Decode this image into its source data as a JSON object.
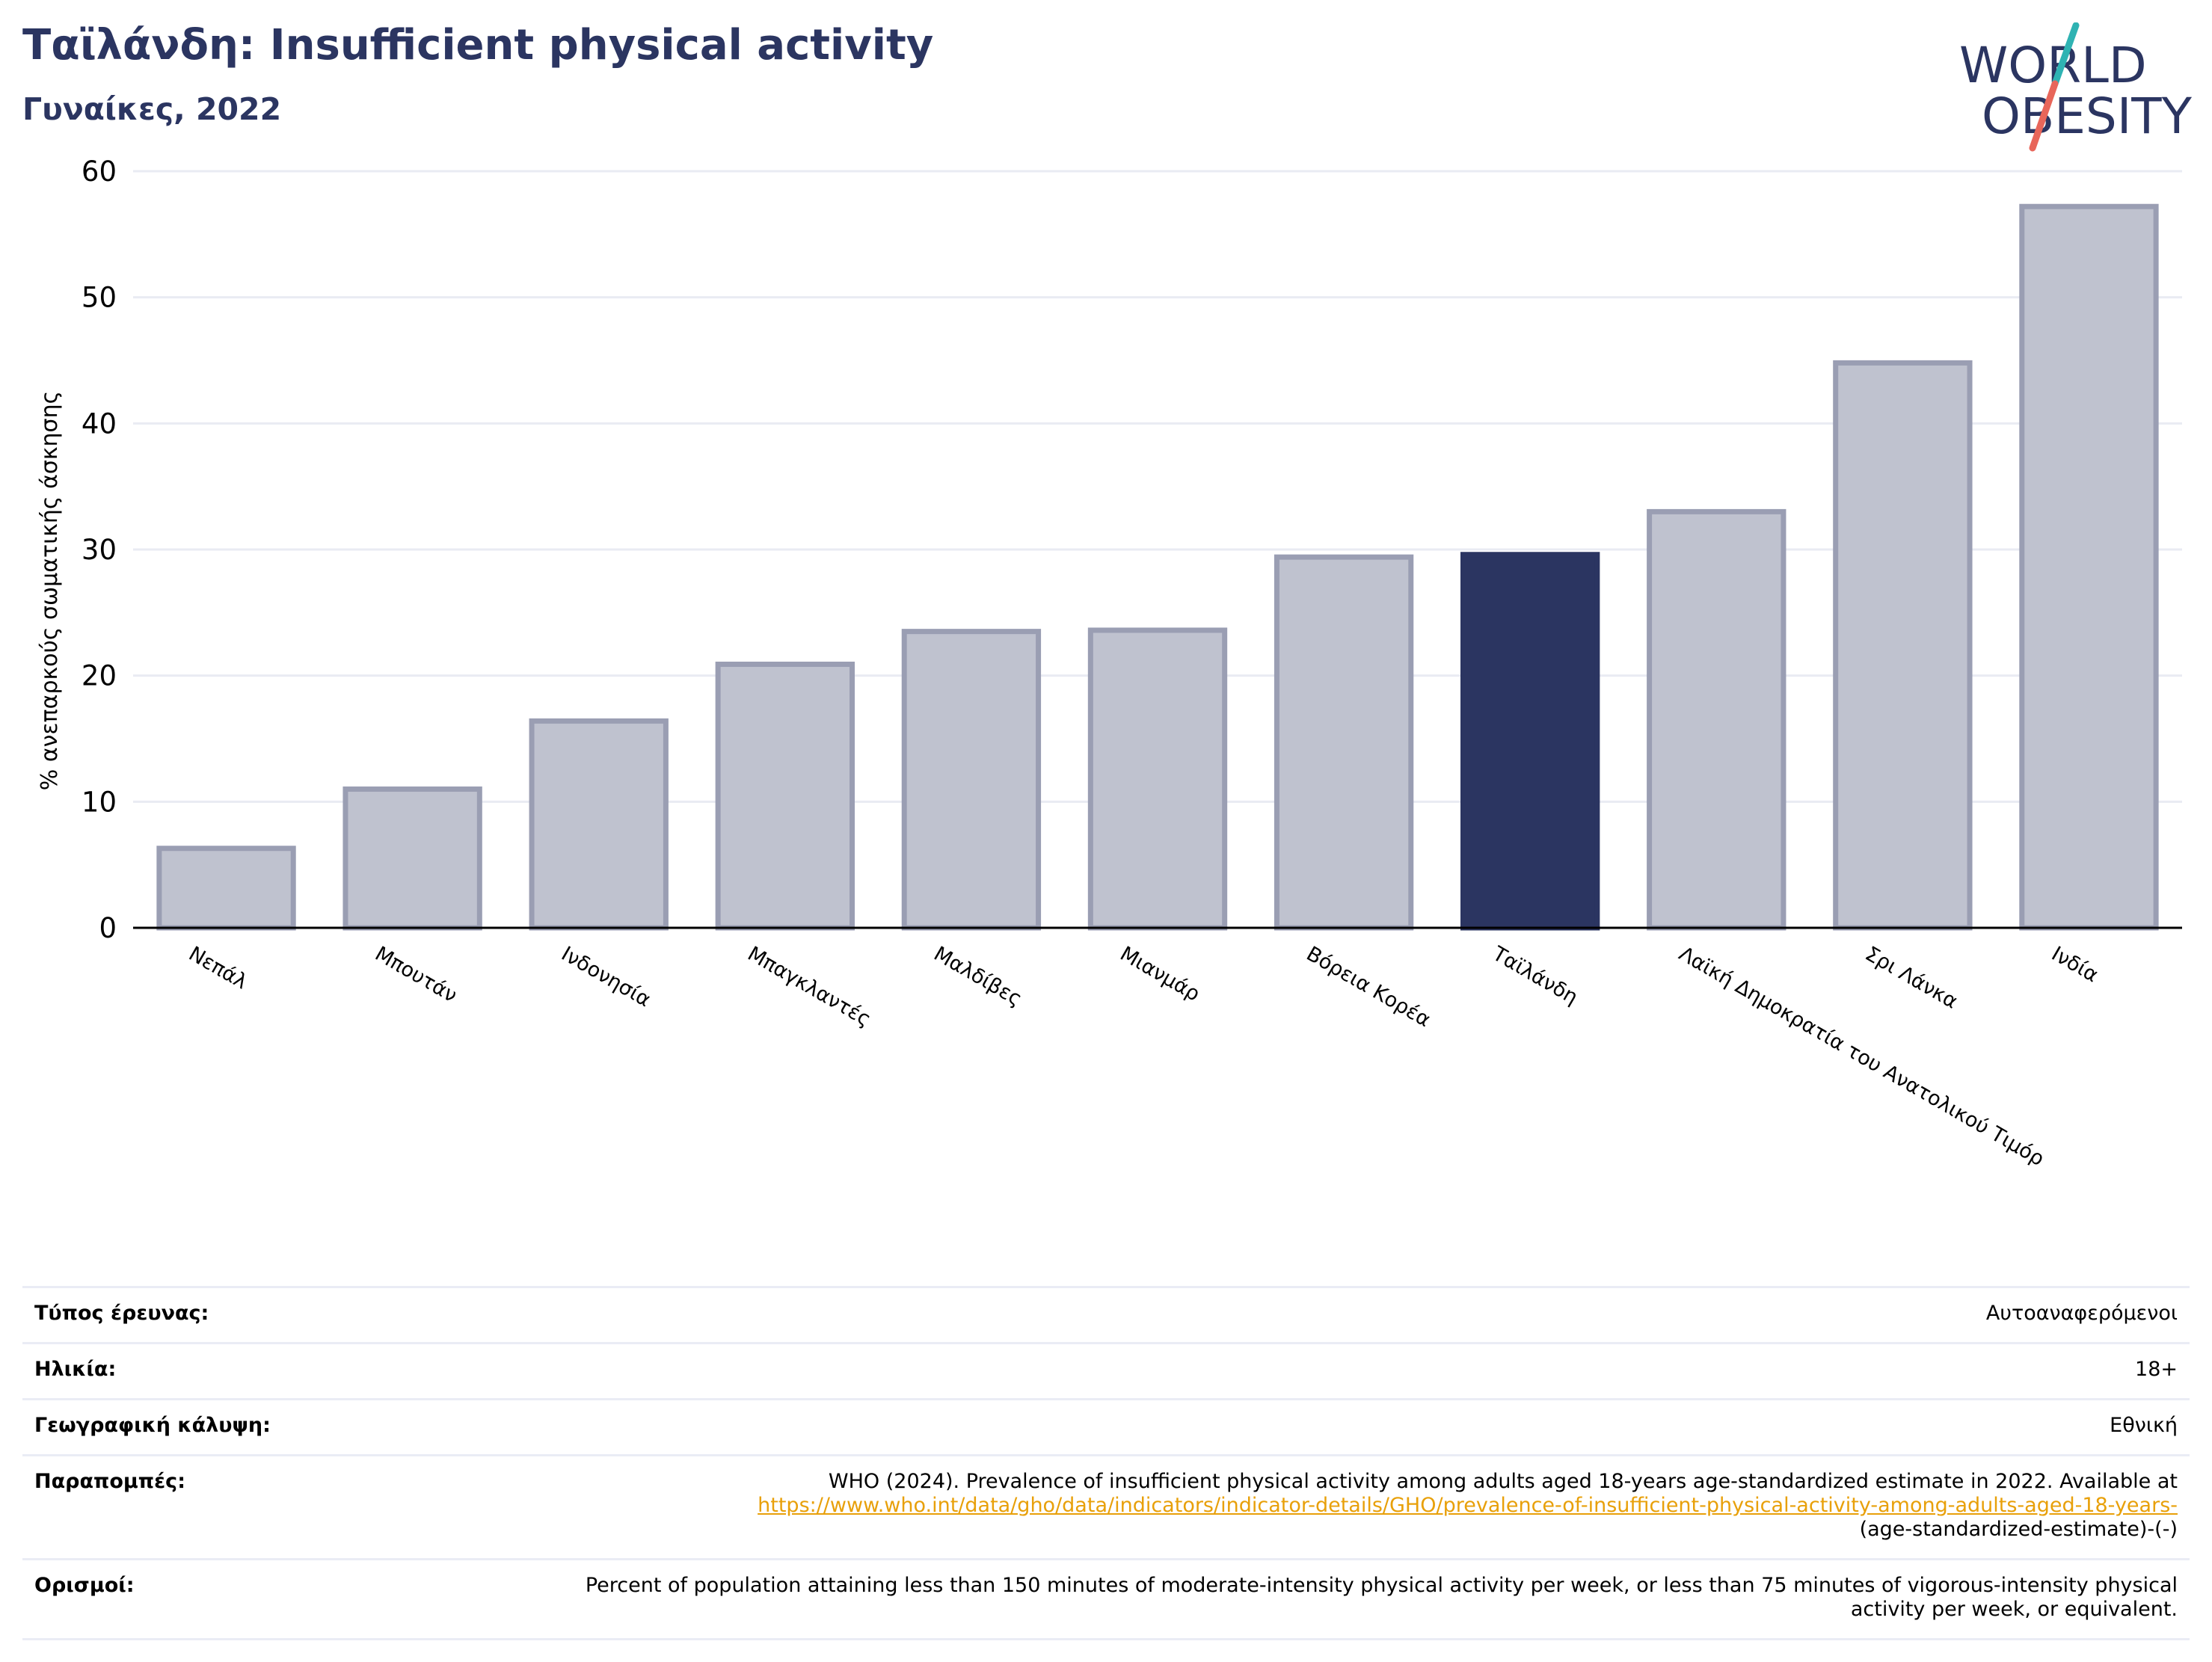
{
  "header": {
    "title": "Ταϊλάνδη: Insufficient physical activity",
    "subtitle": "Γυναίκες, 2022"
  },
  "logo": {
    "line1": "WORLD",
    "line2": "OBESITY",
    "slash_colors": [
      "#2fb3b3",
      "#e8665a"
    ],
    "text_color": "#2b3561"
  },
  "chart_data": {
    "type": "bar",
    "title": "Ταϊλάνδη: Insufficient physical activity",
    "subtitle": "Γυναίκες, 2022",
    "xlabel": "",
    "ylabel": "% ανεπαρκούς σωματικής άσκησης",
    "ylim": [
      0,
      60
    ],
    "yticks": [
      0,
      10,
      20,
      30,
      40,
      50,
      60
    ],
    "grid": true,
    "highlight": "Ταϊλάνδη",
    "colors": {
      "default": "#bfc2cf",
      "default_border": "#9a9eb3",
      "highlight": "#2b3561"
    },
    "categories": [
      "Νεπάλ",
      "Μπουτάν",
      "Ινδονησία",
      "Μπαγκλαντές",
      "Μαλδίβες",
      "Μιανμάρ",
      "Βόρεια Κορέα",
      "Ταϊλάνδη",
      "Λαϊκή Δημοκρατία του Ανατολικού Τιμόρ",
      "Σρι Λάνκα",
      "Ινδία"
    ],
    "values": [
      6.3,
      11.0,
      16.4,
      20.9,
      23.5,
      23.6,
      29.4,
      29.6,
      33.0,
      44.8,
      57.2
    ]
  },
  "info": {
    "rows": [
      {
        "label": "Τύπος έρευνας:",
        "value": "Αυτοαναφερόμενοι"
      },
      {
        "label": "Ηλικία:",
        "value": "18+"
      },
      {
        "label": "Γεωγραφική κάλυψη:",
        "value": "Εθνική"
      },
      {
        "label": "Παραπομπές:",
        "value": "WHO (2024). Prevalence of insufficient physical activity among adults aged 18-years age-standardized estimate in 2022. Available at",
        "link": "https://www.who.int/data/gho/data/indicators/indicator-details/GHO/prevalence-of-insufficient-physical-activity-among-adults-aged-18-years-",
        "value_end": "(age-standardized-estimate)-(-)"
      },
      {
        "label": "Ορισμοί:",
        "value": "Percent of population attaining less than 150 minutes of moderate-intensity physical activity per week, or less than 75 minutes of vigorous-intensity physical activity per week, or equivalent."
      }
    ]
  }
}
